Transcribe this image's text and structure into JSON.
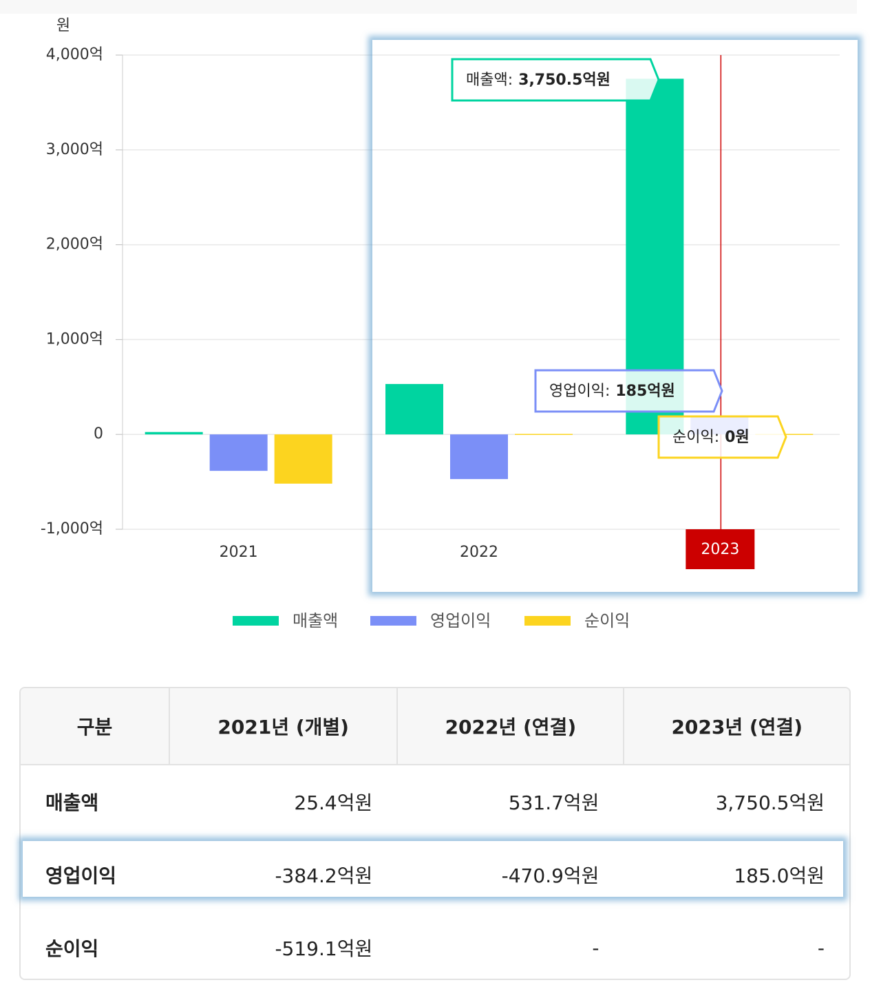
{
  "chart_data": {
    "type": "bar",
    "y_unit": "원",
    "categories": [
      "2021",
      "2022",
      "2023"
    ],
    "series": [
      {
        "name": "매출액",
        "color": "#00d4a0",
        "values": [
          25.4,
          531.7,
          3750.5
        ]
      },
      {
        "name": "영업이익",
        "color": "#7b8ff7",
        "values": [
          -384.2,
          -470.9,
          185.0
        ]
      },
      {
        "name": "순이익",
        "color": "#fcd41f",
        "values": [
          -519.1,
          0,
          0
        ]
      }
    ],
    "ylim": [
      -1000,
      4000
    ],
    "yticks": [
      {
        "value": -1000,
        "label": "-1,000억"
      },
      0,
      {
        "value": 1000,
        "label": "1,000억"
      },
      {
        "value": 2000,
        "label": "2,000억"
      },
      {
        "value": 3000,
        "label": "3,000억"
      },
      {
        "value": 4000,
        "label": "4,000억"
      }
    ],
    "grid": true,
    "legend": "bottom",
    "tooltip": {
      "index": 2,
      "items": [
        {
          "label": "매출액:",
          "value": "3,750.5억원"
        },
        {
          "label": "영업이익:",
          "value": "185억원"
        },
        {
          "label": "순이익:",
          "value": "0원"
        }
      ]
    }
  },
  "table": {
    "header": [
      "구분",
      "2021년 (개별)",
      "2022년 (연결)",
      "2023년 (연결)"
    ],
    "rows": [
      [
        "매출액",
        "25.4억원",
        "531.7억원",
        "3,750.5억원"
      ],
      [
        "영업이익",
        "-384.2억원",
        "-470.9억원",
        "185.0억원"
      ],
      [
        "순이익",
        "-519.1억원",
        "-",
        "-"
      ]
    ]
  }
}
